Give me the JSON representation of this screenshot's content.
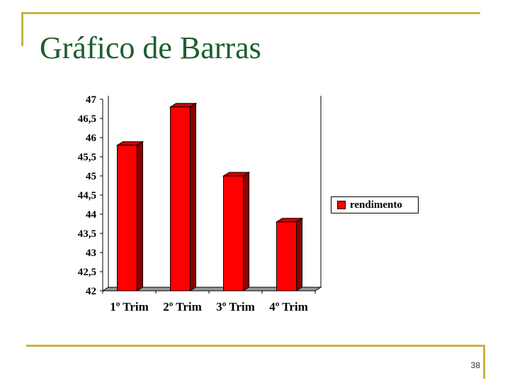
{
  "slide": {
    "title": "Gráfico de Barras",
    "page_number": "38"
  },
  "colors": {
    "accent_line": "#c8b343",
    "title_color": "#1b5e2e",
    "bar_front": "#ff0000",
    "bar_side": "#8b0000",
    "bar_top": "#cc0000",
    "floor": "#999999"
  },
  "chart_data": {
    "type": "bar",
    "title": "",
    "xlabel": "",
    "ylabel": "",
    "categories": [
      "1º Trim",
      "2º Trim",
      "3º Trim",
      "4º Trim"
    ],
    "series": [
      {
        "name": "rendimento",
        "values": [
          45.8,
          46.8,
          45.0,
          43.8
        ]
      }
    ],
    "ylim": [
      42,
      47
    ],
    "ytick_labels": [
      "42",
      "42,5",
      "43",
      "43,5",
      "44",
      "44,5",
      "45",
      "45,5",
      "46",
      "46,5",
      "47"
    ],
    "grid": false,
    "legend": "right",
    "style": "3d"
  }
}
